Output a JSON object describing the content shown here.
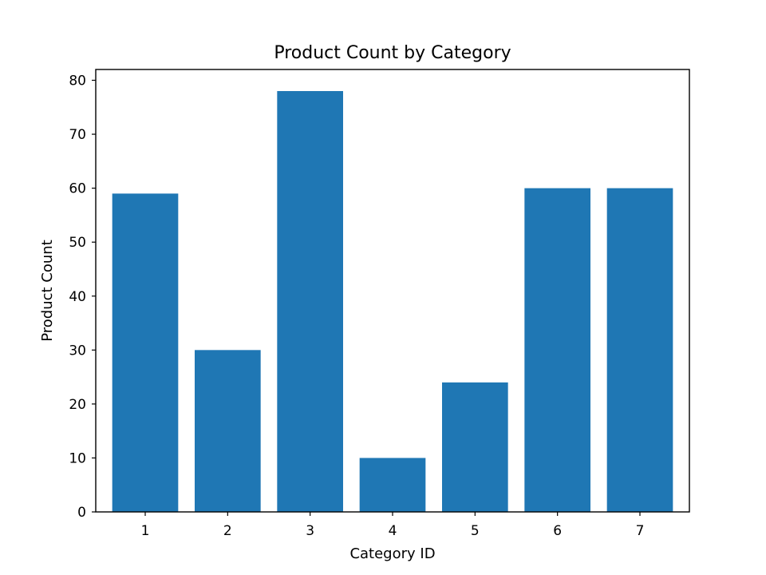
{
  "chart_data": {
    "type": "bar",
    "title": "Product Count by Category",
    "xlabel": "Category ID",
    "ylabel": "Product Count",
    "categories": [
      "1",
      "2",
      "3",
      "4",
      "5",
      "6",
      "7"
    ],
    "values": [
      59,
      30,
      78,
      10,
      24,
      60,
      60
    ],
    "ylim": [
      0,
      82
    ],
    "yticks": [
      0,
      10,
      20,
      30,
      40,
      50,
      60,
      70,
      80
    ],
    "bar_color": "#1f77b4",
    "grid": false,
    "legend": "none"
  }
}
